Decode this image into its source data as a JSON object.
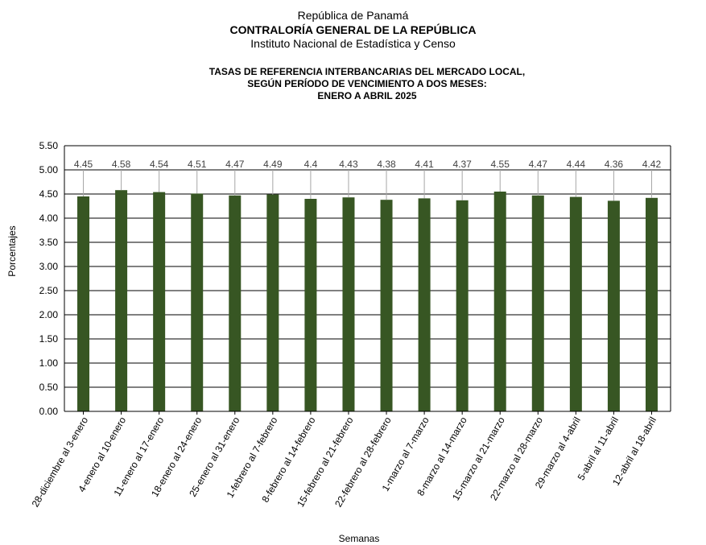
{
  "header": {
    "country": "República de Panamá",
    "institution": "CONTRALORÍA GENERAL DE LA REPÚBLICA",
    "institute": "Instituto Nacional de Estadística y Censo"
  },
  "chart_data": {
    "type": "bar",
    "title_lines": [
      "TASAS DE REFERENCIA INTERBANCARIAS DEL MERCADO LOCAL,",
      "SEGÚN PERÍODO DE VENCIMIENTO A DOS MESES:",
      "ENERO A ABRIL 2025"
    ],
    "xlabel": "Semanas",
    "ylabel": "Porcentajes",
    "ylim": [
      0,
      5.5
    ],
    "yticks": [
      "0.00",
      "0.50",
      "1.00",
      "1.50",
      "2.00",
      "2.50",
      "3.00",
      "3.50",
      "4.00",
      "4.50",
      "5.00",
      "5.50"
    ],
    "grid": true,
    "bar_color": "#375623",
    "categories": [
      "28-diciembre al 3-enero",
      "4-enero al 10-enero",
      "11-enero al 17-enero",
      "18-enero al 24-enero",
      "25-enero al 31-enero",
      "1-febrero al 7-febrero",
      "8-febrero al 14-febrero",
      "15-febrero al 21-febrero",
      "22-febrero al 28-febrero",
      "1-marzo al 7-marzo",
      "8-marzo al 14-marzo",
      "15-marzo al 21-marzo",
      "22-marzo al 28-marzo",
      "29-marzo al 4-abril",
      "5-abril al 11-abril",
      "12-abril al 18-abril"
    ],
    "values": [
      4.45,
      4.58,
      4.54,
      4.51,
      4.47,
      4.49,
      4.4,
      4.43,
      4.38,
      4.41,
      4.37,
      4.55,
      4.47,
      4.44,
      4.36,
      4.42
    ],
    "value_labels": [
      "4.45",
      "4.58",
      "4.54",
      "4.51",
      "4.47",
      "4.49",
      "4.4",
      "4.43",
      "4.38",
      "4.41",
      "4.37",
      "4.55",
      "4.47",
      "4.44",
      "4.36",
      "4.42"
    ]
  }
}
